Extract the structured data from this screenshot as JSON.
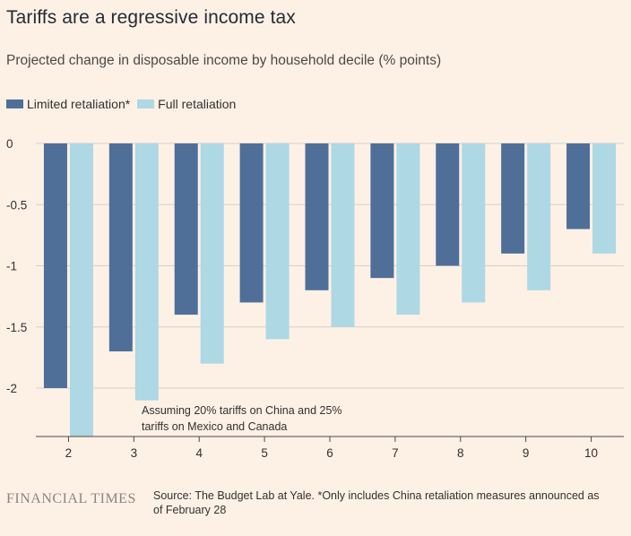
{
  "title": "Tariffs are a regressive income tax",
  "subtitle": "Projected change in disposable income by household decile (% points)",
  "legend": {
    "limited": "Limited retaliation*",
    "full": "Full retaliation"
  },
  "colors": {
    "limited": "#4f6f99",
    "full": "#add8e4",
    "grid": "#d9cfc7",
    "axis": "#4d4845"
  },
  "annotation": {
    "line1": "Assuming 20% tariffs on China and 25%",
    "line2": "tariffs on Mexico and Canada"
  },
  "footer": {
    "logo": "FINANCIAL TIMES",
    "source": "Source: The Budget Lab at Yale. *Only includes China retaliation measures announced as of February 28"
  },
  "chart_data": {
    "type": "bar",
    "title": "Tariffs are a regressive income tax",
    "subtitle": "Projected change in disposable income by household decile (% points)",
    "categories": [
      "2",
      "3",
      "4",
      "5",
      "6",
      "7",
      "8",
      "9",
      "10"
    ],
    "series": [
      {
        "name": "Limited retaliation*",
        "values": [
          -2.0,
          -1.7,
          -1.4,
          -1.3,
          -1.2,
          -1.1,
          -1.0,
          -0.9,
          -0.7
        ]
      },
      {
        "name": "Full retaliation",
        "values": [
          -2.4,
          -2.1,
          -1.8,
          -1.6,
          -1.5,
          -1.4,
          -1.3,
          -1.2,
          -0.9
        ]
      }
    ],
    "yticks": [
      0,
      -0.5,
      -1,
      -1.5,
      -2
    ],
    "ytick_labels": [
      "0",
      "-0.5",
      "-1",
      "-1.5",
      "-2"
    ],
    "ylim": [
      -2.4,
      0
    ],
    "grid": true,
    "legend_position": "top-left"
  }
}
